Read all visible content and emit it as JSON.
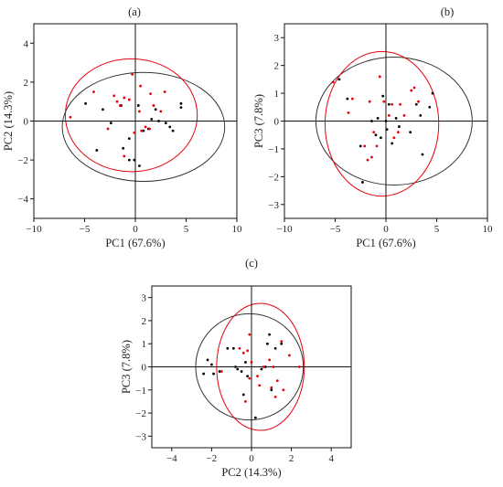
{
  "chart_data": [
    {
      "type": "scatter",
      "panel_label": "(a)",
      "xlabel": "PC1 (67.6%)",
      "ylabel": "PC2 (14.3%)",
      "xlim": [
        -10,
        10
      ],
      "ylim": [
        -5,
        5
      ],
      "xticks": [
        -10,
        -5,
        0,
        5,
        10
      ],
      "yticks": [
        -4,
        -2,
        0,
        2,
        4
      ],
      "grid": false,
      "series": [
        {
          "color": "#000000",
          "points": [
            [
              -4.9,
              0.9
            ],
            [
              -3.8,
              -1.5
            ],
            [
              -3.2,
              0.6
            ],
            [
              -2.4,
              -0.1
            ],
            [
              -1.4,
              0.8
            ],
            [
              -1.2,
              -1.4
            ],
            [
              -0.6,
              -2.0
            ],
            [
              -0.1,
              -2.0
            ],
            [
              0.4,
              -2.3
            ],
            [
              0.8,
              -0.5
            ],
            [
              1.3,
              -0.4
            ],
            [
              1.6,
              0.1
            ],
            [
              2.0,
              0.6
            ],
            [
              2.3,
              0.0
            ],
            [
              3.0,
              -0.1
            ],
            [
              3.4,
              -0.3
            ],
            [
              3.7,
              -0.5
            ],
            [
              4.5,
              0.9
            ],
            [
              4.5,
              0.7
            ],
            [
              -0.6,
              -0.9
            ],
            [
              0.3,
              0.8
            ]
          ]
        },
        {
          "color": "#e8000b",
          "points": [
            [
              -6.4,
              0.2
            ],
            [
              -4.1,
              1.5
            ],
            [
              -2.7,
              -0.4
            ],
            [
              -2.1,
              1.3
            ],
            [
              -1.8,
              1.0
            ],
            [
              -1.5,
              0.8
            ],
            [
              -1.1,
              1.2
            ],
            [
              -0.6,
              1.1
            ],
            [
              -0.3,
              2.4
            ],
            [
              -0.1,
              -0.6
            ],
            [
              0.4,
              0.5
            ],
            [
              0.5,
              1.8
            ],
            [
              1.0,
              -0.3
            ],
            [
              1.4,
              -0.4
            ],
            [
              1.5,
              1.4
            ],
            [
              1.8,
              0.8
            ],
            [
              2.5,
              0.5
            ],
            [
              2.9,
              1.5
            ],
            [
              -1.1,
              -1.8
            ],
            [
              0.6,
              -0.5
            ]
          ]
        }
      ],
      "ellipses": [
        {
          "color": "#333333",
          "center": [
            0.8,
            -0.3
          ],
          "rx": 8.0,
          "ry": 2.8
        },
        {
          "color": "#e8000b",
          "center": [
            -0.4,
            0.3
          ],
          "rx": 6.5,
          "ry": 2.9
        }
      ]
    },
    {
      "type": "scatter",
      "panel_label": "(b)",
      "xlabel": "PC1 (67.6%)",
      "ylabel": "PC3 (7.8%)",
      "xlim": [
        -10,
        10
      ],
      "ylim": [
        -3.5,
        3.5
      ],
      "xticks": [
        -10,
        -5,
        0,
        5,
        10
      ],
      "yticks": [
        -3,
        -2,
        -1,
        0,
        1,
        2,
        3
      ],
      "grid": false,
      "series": [
        {
          "color": "#000000",
          "points": [
            [
              -4.6,
              1.5
            ],
            [
              -3.8,
              0.8
            ],
            [
              -2.5,
              -0.9
            ],
            [
              -2.3,
              -2.2
            ],
            [
              -1.4,
              0.0
            ],
            [
              -1.0,
              -0.5
            ],
            [
              -0.8,
              0.1
            ],
            [
              -0.3,
              0.9
            ],
            [
              0.0,
              0.0
            ],
            [
              0.3,
              0.6
            ],
            [
              0.6,
              -0.8
            ],
            [
              1.0,
              0.1
            ],
            [
              1.3,
              -0.2
            ],
            [
              2.4,
              -0.4
            ],
            [
              3.0,
              0.6
            ],
            [
              3.4,
              0.2
            ],
            [
              3.6,
              -1.2
            ],
            [
              4.3,
              0.5
            ],
            [
              4.6,
              1.0
            ],
            [
              0.1,
              -0.3
            ],
            [
              -0.5,
              -0.6
            ]
          ]
        },
        {
          "color": "#e8000b",
          "points": [
            [
              -5.2,
              1.4
            ],
            [
              -3.7,
              0.3
            ],
            [
              -3.3,
              0.8
            ],
            [
              -2.1,
              -0.9
            ],
            [
              -1.8,
              -1.4
            ],
            [
              -1.6,
              0.7
            ],
            [
              -1.2,
              -0.4
            ],
            [
              -0.9,
              -0.9
            ],
            [
              -0.6,
              1.6
            ],
            [
              -0.2,
              0.7
            ],
            [
              0.6,
              0.6
            ],
            [
              0.8,
              -0.6
            ],
            [
              1.2,
              -0.4
            ],
            [
              1.8,
              0.2
            ],
            [
              2.5,
              1.1
            ],
            [
              2.8,
              1.2
            ],
            [
              3.2,
              0.7
            ],
            [
              -1.4,
              -1.3
            ],
            [
              0.3,
              0.2
            ],
            [
              1.4,
              0.6
            ]
          ]
        }
      ],
      "ellipses": [
        {
          "color": "#333333",
          "center": [
            0.8,
            0.0
          ],
          "rx": 7.7,
          "ry": 2.3
        },
        {
          "color": "#e8000b",
          "center": [
            -0.4,
            -0.1
          ],
          "rx": 5.6,
          "ry": 2.6
        }
      ]
    },
    {
      "type": "scatter",
      "panel_label": "(c)",
      "xlabel": "PC2 (14.3%)",
      "ylabel": "PC3 (7.8%)",
      "xlim": [
        -5,
        5
      ],
      "ylim": [
        -3.5,
        3.5
      ],
      "xticks": [
        -4,
        -2,
        0,
        2,
        4
      ],
      "yticks": [
        -3,
        -2,
        -1,
        0,
        1,
        2,
        3
      ],
      "grid": false,
      "series": [
        {
          "color": "#000000",
          "points": [
            [
              -2.2,
              0.3
            ],
            [
              -2.0,
              0.1
            ],
            [
              -1.9,
              -0.3
            ],
            [
              -1.6,
              -0.2
            ],
            [
              -1.2,
              0.8
            ],
            [
              -0.9,
              0.8
            ],
            [
              -0.8,
              0.0
            ],
            [
              -0.7,
              -0.1
            ],
            [
              -0.5,
              -0.2
            ],
            [
              -0.4,
              -1.2
            ],
            [
              -0.3,
              0.2
            ],
            [
              -0.2,
              -0.4
            ],
            [
              0.2,
              -2.2
            ],
            [
              0.5,
              -0.1
            ],
            [
              0.7,
              0.0
            ],
            [
              0.8,
              1.0
            ],
            [
              0.9,
              1.4
            ],
            [
              1.0,
              -1.0
            ],
            [
              1.2,
              0.8
            ],
            [
              1.5,
              1.0
            ],
            [
              -2.4,
              -0.3
            ]
          ]
        },
        {
          "color": "#e8000b",
          "points": [
            [
              -1.5,
              -0.2
            ],
            [
              -0.6,
              0.8
            ],
            [
              -0.4,
              0.6
            ],
            [
              -0.2,
              0.7
            ],
            [
              -0.1,
              1.4
            ],
            [
              0.0,
              0.2
            ],
            [
              -0.3,
              -1.5
            ],
            [
              -0.1,
              -0.5
            ],
            [
              0.3,
              -0.4
            ],
            [
              0.4,
              -0.8
            ],
            [
              0.6,
              0.0
            ],
            [
              0.9,
              0.3
            ],
            [
              1.0,
              -0.9
            ],
            [
              1.1,
              0.0
            ],
            [
              1.2,
              -1.3
            ],
            [
              1.3,
              -0.6
            ],
            [
              1.5,
              1.1
            ],
            [
              1.6,
              -1.0
            ],
            [
              1.9,
              0.5
            ],
            [
              2.4,
              0.0
            ]
          ]
        }
      ],
      "ellipses": [
        {
          "color": "#333333",
          "center": [
            -0.1,
            0.0
          ],
          "rx": 2.7,
          "ry": 2.3
        },
        {
          "color": "#e8000b",
          "center": [
            0.45,
            0.0
          ],
          "rx": 2.2,
          "ry": 2.75
        }
      ]
    }
  ]
}
